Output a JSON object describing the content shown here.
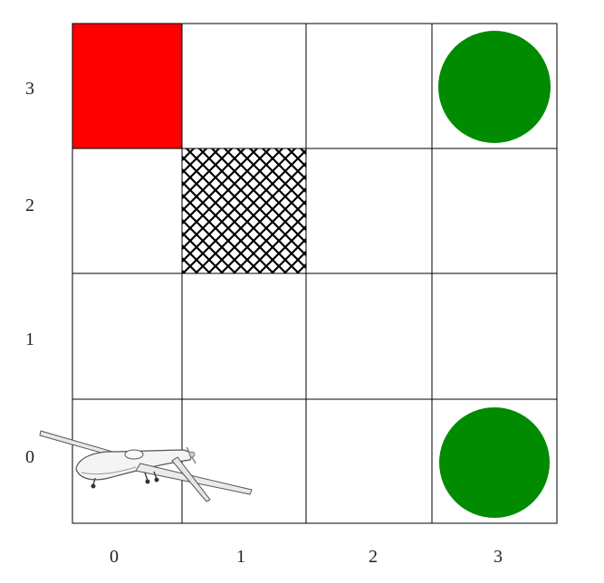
{
  "grid": {
    "rows": 4,
    "cols": 4,
    "y_labels": [
      "3",
      "2",
      "1",
      "0"
    ],
    "x_labels": [
      "0",
      "1",
      "2",
      "3"
    ]
  },
  "cells": [
    {
      "row": 3,
      "col": 0,
      "type": "red-square",
      "color": "#ff0000"
    },
    {
      "row": 2,
      "col": 1,
      "type": "crosshatch-obstacle"
    },
    {
      "row": 3,
      "col": 3,
      "type": "green-circle-goal",
      "color": "#008b00"
    },
    {
      "row": 0,
      "col": 3,
      "type": "green-circle-goal",
      "color": "#008b00"
    },
    {
      "row": 0,
      "col": 0,
      "type": "drone-agent"
    }
  ],
  "colors": {
    "grid_line": "#000000",
    "red": "#ff0000",
    "green": "#008b00"
  }
}
